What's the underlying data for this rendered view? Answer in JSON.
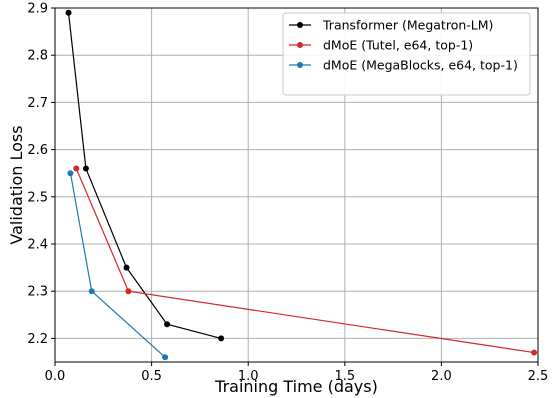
{
  "chart_data": {
    "type": "line",
    "xlabel": "Training Time (days)",
    "ylabel": "Validation Loss",
    "xlim": [
      0.0,
      2.5
    ],
    "ylim": [
      2.15,
      2.9
    ],
    "grid": true,
    "legend_position": "top-right",
    "x_ticks": [
      "0.0",
      "0.5",
      "1.0",
      "1.5",
      "2.0",
      "2.5"
    ],
    "x_tick_values": [
      0.0,
      0.5,
      1.0,
      1.5,
      2.0,
      2.5
    ],
    "y_ticks": [
      "2.2",
      "2.3",
      "2.4",
      "2.5",
      "2.6",
      "2.7",
      "2.8",
      "2.9"
    ],
    "y_tick_values": [
      2.2,
      2.3,
      2.4,
      2.5,
      2.6,
      2.7,
      2.8,
      2.9
    ],
    "series": [
      {
        "name": "Transformer (Megatron-LM)",
        "color": "#000000",
        "x": [
          0.07,
          0.16,
          0.37,
          0.58,
          0.86
        ],
        "y": [
          2.89,
          2.56,
          2.35,
          2.23,
          2.2
        ]
      },
      {
        "name": "dMoE (Tutel, e64, top-1)",
        "color": "#d62728",
        "x": [
          0.11,
          0.38,
          2.48
        ],
        "y": [
          2.56,
          2.3,
          2.17
        ]
      },
      {
        "name": "dMoE (MegaBlocks, e64, top-1)",
        "color": "#1f77b4",
        "x": [
          0.08,
          0.19,
          0.57
        ],
        "y": [
          2.55,
          2.3,
          2.16
        ]
      }
    ]
  }
}
